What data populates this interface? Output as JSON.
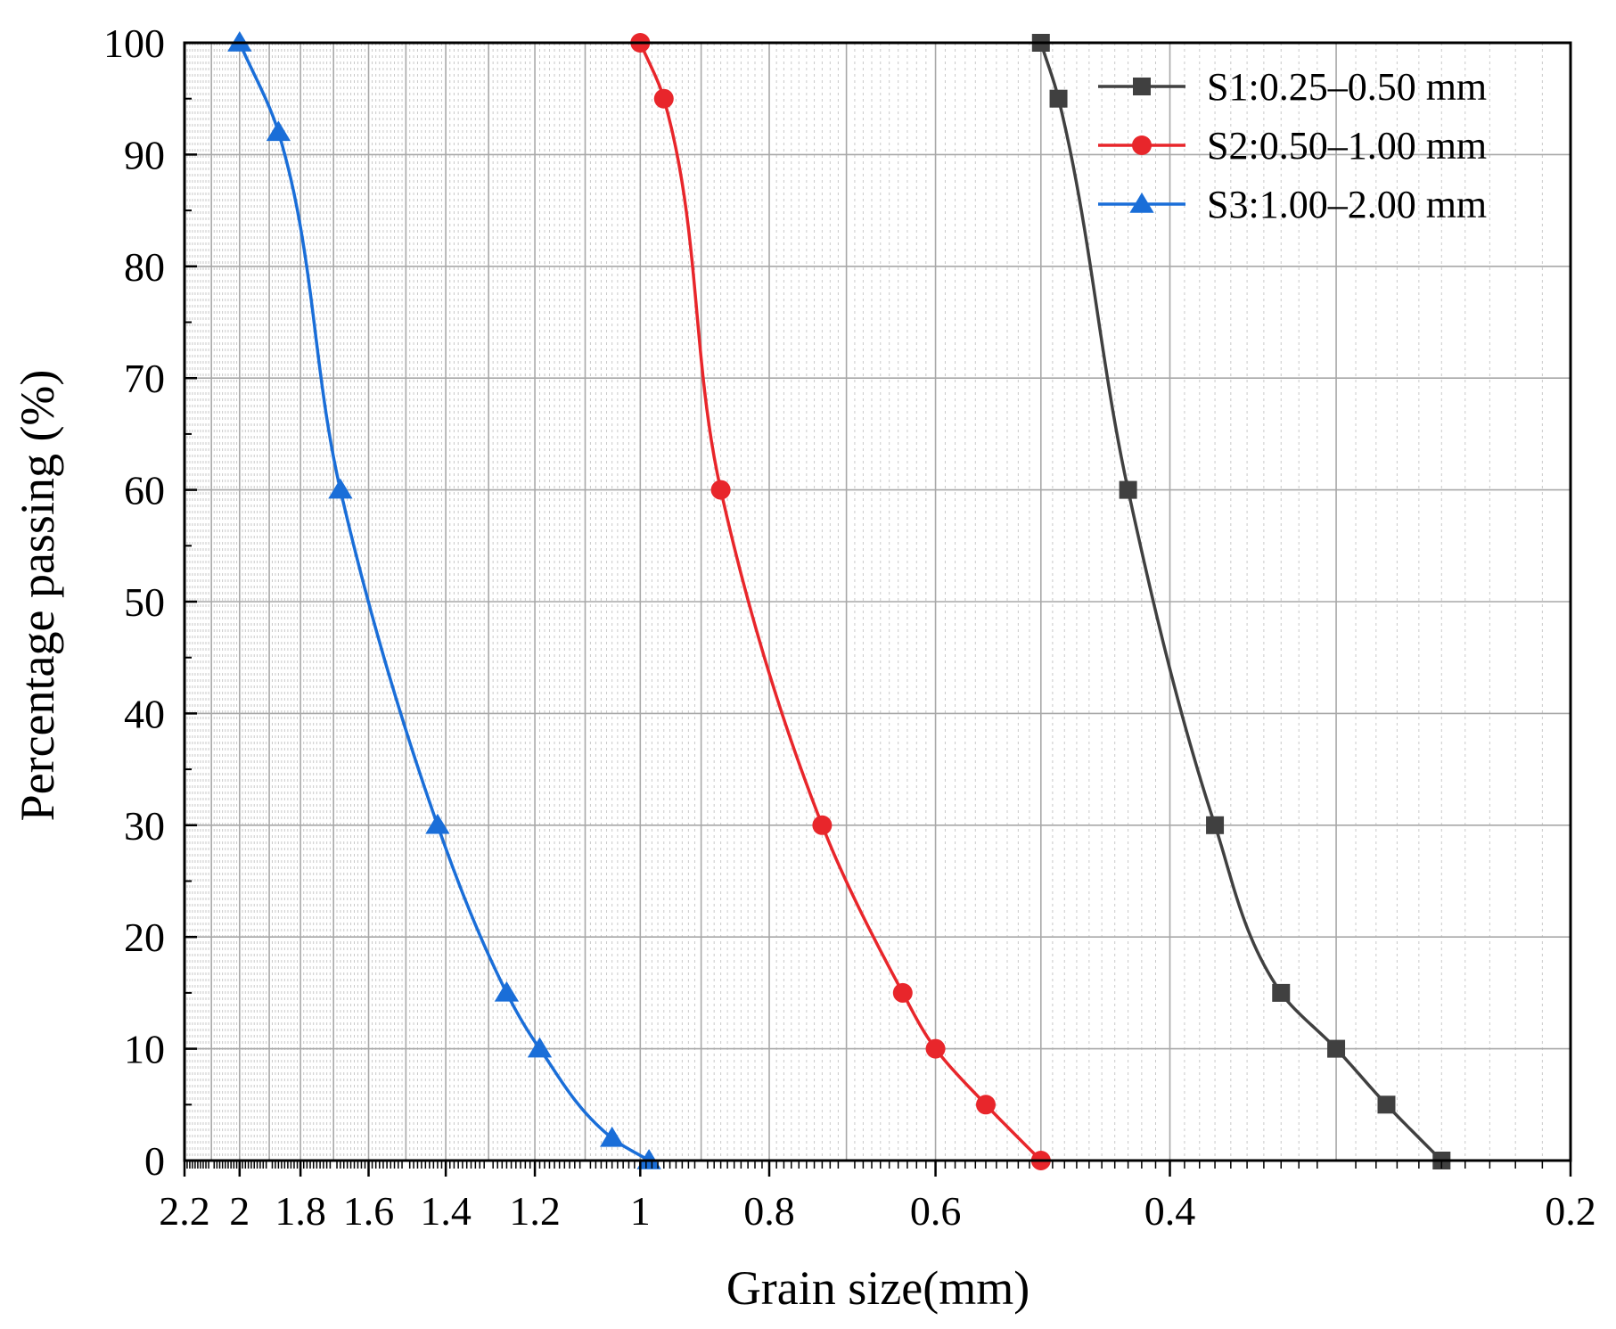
{
  "chart_data": {
    "type": "line",
    "title": "",
    "xlabel": "Grain size(mm)",
    "ylabel": "Percentage passing (%)",
    "xscale": "log",
    "xdir": "reversed",
    "xlim": [
      2.2,
      0.2
    ],
    "ylim": [
      0,
      100
    ],
    "grid": true,
    "legend_position": "top-right",
    "x_ticks": [
      {
        "value": 2.2,
        "label": "2.2"
      },
      {
        "value": 2.0,
        "label": "2"
      },
      {
        "value": 1.8,
        "label": "1.8"
      },
      {
        "value": 1.6,
        "label": "1.6"
      },
      {
        "value": 1.4,
        "label": "1.4"
      },
      {
        "value": 1.2,
        "label": "1.2"
      },
      {
        "value": 1.0,
        "label": "1"
      },
      {
        "value": 0.8,
        "label": "0.8"
      },
      {
        "value": 0.6,
        "label": "0.6"
      },
      {
        "value": 0.4,
        "label": "0.4"
      },
      {
        "value": 0.2,
        "label": "0.2"
      }
    ],
    "y_ticks": [
      {
        "value": 0,
        "label": "0"
      },
      {
        "value": 10,
        "label": "10"
      },
      {
        "value": 20,
        "label": "20"
      },
      {
        "value": 30,
        "label": "30"
      },
      {
        "value": 40,
        "label": "40"
      },
      {
        "value": 50,
        "label": "50"
      },
      {
        "value": 60,
        "label": "60"
      },
      {
        "value": 70,
        "label": "70"
      },
      {
        "value": 80,
        "label": "80"
      },
      {
        "value": 90,
        "label": "90"
      },
      {
        "value": 100,
        "label": "100"
      }
    ],
    "series": [
      {
        "name": "S1:0.25–0.50 mm",
        "color": "#404040",
        "marker": "square",
        "x": [
          0.5,
          0.485,
          0.43,
          0.37,
          0.33,
          0.3,
          0.275,
          0.25
        ],
        "y": [
          100,
          95,
          60,
          30,
          15,
          10,
          5,
          0
        ]
      },
      {
        "name": "S2:0.50–1.00 mm",
        "color": "#e8262b",
        "marker": "circle",
        "x": [
          1.0,
          0.96,
          0.87,
          0.73,
          0.635,
          0.6,
          0.55,
          0.5
        ],
        "y": [
          100,
          95,
          60,
          30,
          15,
          10,
          5,
          0
        ]
      },
      {
        "name": "S3:1.00–2.00 mm",
        "color": "#1a6ed8",
        "marker": "triangle",
        "x": [
          2.0,
          1.87,
          1.68,
          1.42,
          1.26,
          1.19,
          1.05,
          0.985
        ],
        "y": [
          100,
          92,
          60,
          30,
          15,
          10,
          2,
          0
        ]
      }
    ]
  }
}
